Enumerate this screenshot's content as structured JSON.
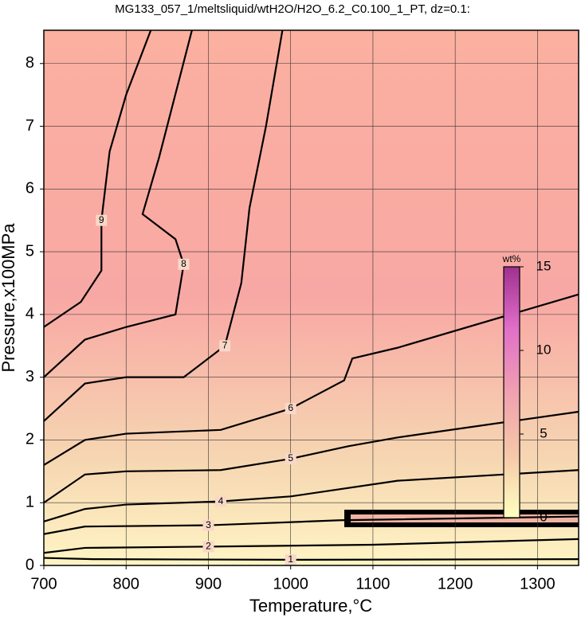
{
  "chart_data": {
    "type": "contour",
    "title": "MG133_057_1/meltsliquid/wtH2O/H2O_6.2_C0.100_1_PT, dz=0.1:",
    "x_label": "Temperature,°C",
    "y_label": "Pressure,x100MPa",
    "xlim": [
      700,
      1350
    ],
    "ylim": [
      0,
      8.53
    ],
    "xticks": [
      700,
      800,
      900,
      1000,
      1100,
      1200,
      1300
    ],
    "yticks": [
      0,
      1,
      2,
      3,
      4,
      5,
      6,
      7,
      8
    ],
    "grid": true,
    "line_color": "#000000",
    "contours": [
      {
        "level": 1,
        "x": [
          700,
          760,
          1000,
          1350
        ],
        "y": [
          0.12,
          0.1,
          0.09,
          0.1
        ]
      },
      {
        "level": 2,
        "x": [
          700,
          750,
          900,
          1100,
          1350
        ],
        "y": [
          0.2,
          0.28,
          0.3,
          0.33,
          0.42
        ]
      },
      {
        "level": 3,
        "x": [
          700,
          750,
          900,
          1060,
          1350
        ],
        "y": [
          0.5,
          0.62,
          0.64,
          0.72,
          0.78
        ]
      },
      {
        "level": 4,
        "x": [
          700,
          750,
          800,
          915,
          1000,
          1130,
          1350
        ],
        "y": [
          0.7,
          0.9,
          0.97,
          1.02,
          1.1,
          1.35,
          1.52
        ]
      },
      {
        "level": 5,
        "x": [
          700,
          750,
          800,
          915,
          1000,
          1070,
          1130,
          1350
        ],
        "y": [
          1.0,
          1.45,
          1.5,
          1.52,
          1.7,
          1.9,
          2.04,
          2.45
        ]
      },
      {
        "level": 6,
        "x": [
          700,
          750,
          800,
          915,
          1000,
          1065,
          1075,
          1130,
          1350
        ],
        "y": [
          1.6,
          2.0,
          2.1,
          2.16,
          2.5,
          2.95,
          3.3,
          3.47,
          4.32
        ]
      },
      {
        "level": 7,
        "x": [
          700,
          750,
          800,
          870,
          920,
          940,
          950,
          970,
          990
        ],
        "y": [
          2.3,
          2.9,
          3.0,
          3.0,
          3.5,
          4.5,
          5.7,
          7.0,
          8.53
        ]
      },
      {
        "level": 8,
        "x": [
          700,
          750,
          800,
          860,
          870,
          860,
          820,
          840,
          880
        ],
        "y": [
          3.0,
          3.6,
          3.8,
          4.0,
          4.8,
          5.2,
          5.6,
          6.5,
          8.53
        ]
      },
      {
        "level": 9,
        "x": [
          700,
          745,
          770,
          770,
          780,
          800,
          830
        ],
        "y": [
          3.8,
          4.2,
          4.7,
          5.5,
          6.6,
          7.5,
          8.53
        ]
      }
    ],
    "colorbar": {
      "label": "wt%",
      "lim": [
        0,
        15
      ],
      "ticks": [
        0,
        5,
        10,
        15
      ],
      "colors": [
        "#ffffc0",
        "#f6c8a8",
        "#f0a0b0",
        "#e070c8",
        "#a03090"
      ]
    }
  }
}
